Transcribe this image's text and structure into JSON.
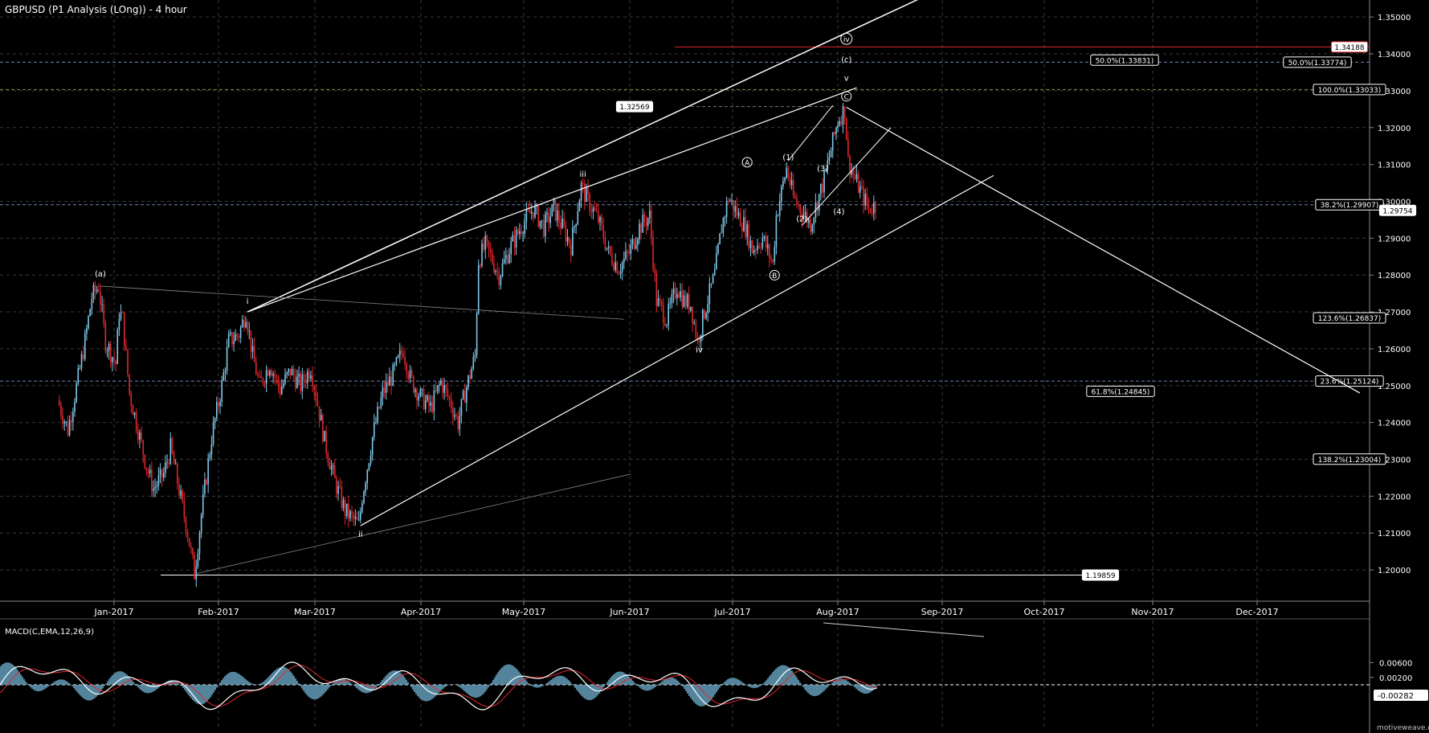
{
  "chart_data": {
    "type": "candlestick",
    "title": "GBPUSD (P1 Analysis (LOng)) - 4 hour",
    "colors": {
      "up": "#7ec8ea",
      "down": "#e0262b",
      "grid": "#3a3a3a",
      "text": "#ffffff",
      "red_line": "#e0262b",
      "fib_line": "#6e86b8",
      "fib_line_2": "#8c8c3c",
      "macd_hist": "#6aa6c4",
      "macd_line": "#ffffff",
      "signal_line": "#e0262b"
    },
    "x_axis": {
      "labels": [
        "Jan-2017",
        "Feb-2017",
        "Mar-2017",
        "Apr-2017",
        "May-2017",
        "Jun-2017",
        "Jul-2017",
        "Aug-2017",
        "Sep-2017",
        "Oct-2017",
        "Nov-2017",
        "Dec-2017"
      ]
    },
    "y_axis": {
      "labels": [
        "1.35000",
        "1.34000",
        "1.33000",
        "1.32000",
        "1.31000",
        "1.30000",
        "1.29000",
        "1.28000",
        "1.27000",
        "1.26000",
        "1.25000",
        "1.24000",
        "1.23000",
        "1.22000",
        "1.21000",
        "1.20000"
      ],
      "range": [
        1.195,
        1.352
      ]
    },
    "price_path": [
      [
        "2016-12-16",
        1.246
      ],
      [
        "2016-12-19",
        1.238
      ],
      [
        "2016-12-22",
        1.252
      ],
      [
        "2016-12-24",
        1.262
      ],
      [
        "2016-12-26",
        1.274
      ],
      [
        "2016-12-28",
        1.277
      ],
      [
        "2016-12-30",
        1.262
      ],
      [
        "2017-01-02",
        1.256
      ],
      [
        "2017-01-03",
        1.27
      ],
      [
        "2017-01-04",
        1.268
      ],
      [
        "2017-01-06",
        1.248
      ],
      [
        "2017-01-09",
        1.236
      ],
      [
        "2017-01-11",
        1.228
      ],
      [
        "2017-01-13",
        1.222
      ],
      [
        "2017-01-16",
        1.226
      ],
      [
        "2017-01-18",
        1.233
      ],
      [
        "2017-01-20",
        1.224
      ],
      [
        "2017-01-23",
        1.21
      ],
      [
        "2017-01-25",
        1.199
      ],
      [
        "2017-01-27",
        1.215
      ],
      [
        "2017-01-30",
        1.236
      ],
      [
        "2017-02-02",
        1.25
      ],
      [
        "2017-02-04",
        1.262
      ],
      [
        "2017-02-07",
        1.264
      ],
      [
        "2017-02-09",
        1.27
      ],
      [
        "2017-02-11",
        1.258
      ],
      [
        "2017-02-13",
        1.25
      ],
      [
        "2017-02-16",
        1.256
      ],
      [
        "2017-02-19",
        1.249
      ],
      [
        "2017-02-22",
        1.254
      ],
      [
        "2017-02-25",
        1.25
      ],
      [
        "2017-02-28",
        1.255
      ],
      [
        "2017-03-02",
        1.245
      ],
      [
        "2017-03-04",
        1.235
      ],
      [
        "2017-03-07",
        1.224
      ],
      [
        "2017-03-10",
        1.216
      ],
      [
        "2017-03-14",
        1.212
      ],
      [
        "2017-03-15",
        1.22
      ],
      [
        "2017-03-18",
        1.236
      ],
      [
        "2017-03-21",
        1.248
      ],
      [
        "2017-03-24",
        1.253
      ],
      [
        "2017-03-27",
        1.26
      ],
      [
        "2017-03-29",
        1.252
      ],
      [
        "2017-04-01",
        1.247
      ],
      [
        "2017-04-04",
        1.244
      ],
      [
        "2017-04-07",
        1.251
      ],
      [
        "2017-04-10",
        1.245
      ],
      [
        "2017-04-12",
        1.24
      ],
      [
        "2017-04-14",
        1.248
      ],
      [
        "2017-04-17",
        1.258
      ],
      [
        "2017-04-18",
        1.284
      ],
      [
        "2017-04-20",
        1.288
      ],
      [
        "2017-04-24",
        1.28
      ],
      [
        "2017-04-27",
        1.287
      ],
      [
        "2017-05-01",
        1.294
      ],
      [
        "2017-05-04",
        1.298
      ],
      [
        "2017-05-07",
        1.293
      ],
      [
        "2017-05-10",
        1.298
      ],
      [
        "2017-05-13",
        1.292
      ],
      [
        "2017-05-15",
        1.288
      ],
      [
        "2017-05-18",
        1.304
      ],
      [
        "2017-05-20",
        1.3
      ],
      [
        "2017-05-23",
        1.295
      ],
      [
        "2017-05-26",
        1.286
      ],
      [
        "2017-05-29",
        1.282
      ],
      [
        "2017-06-01",
        1.286
      ],
      [
        "2017-06-04",
        1.293
      ],
      [
        "2017-06-07",
        1.296
      ],
      [
        "2017-06-09",
        1.273
      ],
      [
        "2017-06-12",
        1.268
      ],
      [
        "2017-06-15",
        1.277
      ],
      [
        "2017-06-17",
        1.273
      ],
      [
        "2017-06-19",
        1.272
      ],
      [
        "2017-06-21",
        1.262
      ],
      [
        "2017-06-23",
        1.27
      ],
      [
        "2017-06-26",
        1.28
      ],
      [
        "2017-06-28",
        1.293
      ],
      [
        "2017-06-30",
        1.301
      ],
      [
        "2017-07-03",
        1.296
      ],
      [
        "2017-07-05",
        1.293
      ],
      [
        "2017-07-07",
        1.287
      ],
      [
        "2017-07-10",
        1.29
      ],
      [
        "2017-07-13",
        1.283
      ],
      [
        "2017-07-14",
        1.296
      ],
      [
        "2017-07-17",
        1.309
      ],
      [
        "2017-07-19",
        1.301
      ],
      [
        "2017-07-21",
        1.298
      ],
      [
        "2017-07-24",
        1.294
      ],
      [
        "2017-07-26",
        1.3
      ],
      [
        "2017-07-28",
        1.306
      ],
      [
        "2017-07-30",
        1.314
      ],
      [
        "2017-08-01",
        1.322
      ],
      [
        "2017-08-03",
        1.325
      ],
      [
        "2017-08-04",
        1.311
      ],
      [
        "2017-08-06",
        1.306
      ],
      [
        "2017-08-08",
        1.302
      ],
      [
        "2017-08-10",
        1.298
      ],
      [
        "2017-08-12",
        1.299
      ]
    ],
    "horizontal_levels": [
      {
        "label": "1.34188",
        "value": 1.34188,
        "color": "#e0262b"
      },
      {
        "label": "50.0%(1.33774)",
        "value": 1.33774
      },
      {
        "label": "50.0%(1.33831)",
        "value": 1.33831
      },
      {
        "label": "100.0%(1.33033)",
        "value": 1.33033
      },
      {
        "label": "1.32569",
        "value": 1.32569
      },
      {
        "label": "38.2%(1.29907)",
        "value": 1.29907
      },
      {
        "label": "1.29754",
        "value": 1.29754
      },
      {
        "label": "123.6%(1.26837)",
        "value": 1.26837
      },
      {
        "label": "23.6%(1.25124)",
        "value": 1.25124
      },
      {
        "label": "61.8%(1.24845)",
        "value": 1.24845
      },
      {
        "label": "138.2%(1.23004)",
        "value": 1.23004
      },
      {
        "label": "1.19859",
        "value": 1.19859
      }
    ],
    "wave_labels": [
      {
        "label": "(a)",
        "date": "2016-12-28",
        "value": 1.277
      },
      {
        "label": "i",
        "date": "2017-02-09",
        "value": 1.27
      },
      {
        "label": "ii",
        "date": "2017-03-14",
        "value": 1.212
      },
      {
        "label": "iii",
        "date": "2017-05-18",
        "value": 1.304
      },
      {
        "label": "iv",
        "date": "2017-06-21",
        "value": 1.262
      },
      {
        "label": "Ⓐ",
        "date": "2017-07-05",
        "value": 1.301
      },
      {
        "label": "Ⓑ",
        "date": "2017-07-13",
        "value": 1.283
      },
      {
        "label": "(1)",
        "date": "2017-07-17",
        "value": 1.309
      },
      {
        "label": "(2)",
        "date": "2017-07-21",
        "value": 1.298
      },
      {
        "label": "(3)",
        "date": "2017-07-28",
        "value": 1.306
      },
      {
        "label": "(4)",
        "date": "2017-07-29",
        "value": 1.303
      },
      {
        "label": "Ⓒ",
        "date": "2017-08-03",
        "value": 1.325
      },
      {
        "label": "v",
        "date": "2017-08-03",
        "value": 1.327
      },
      {
        "label": "(c)",
        "date": "2017-08-03",
        "value": 1.329
      },
      {
        "label": "ⓘⓥ",
        "date": "2017-08-03",
        "value": 1.331
      }
    ],
    "macd": {
      "label": "MACD(C,EMA,12,26,9)",
      "y_labels": [
        "0.00600",
        "0.00200",
        "-0.00282"
      ],
      "current": "-0.00282"
    },
    "watermark": "motiveweave.com"
  }
}
